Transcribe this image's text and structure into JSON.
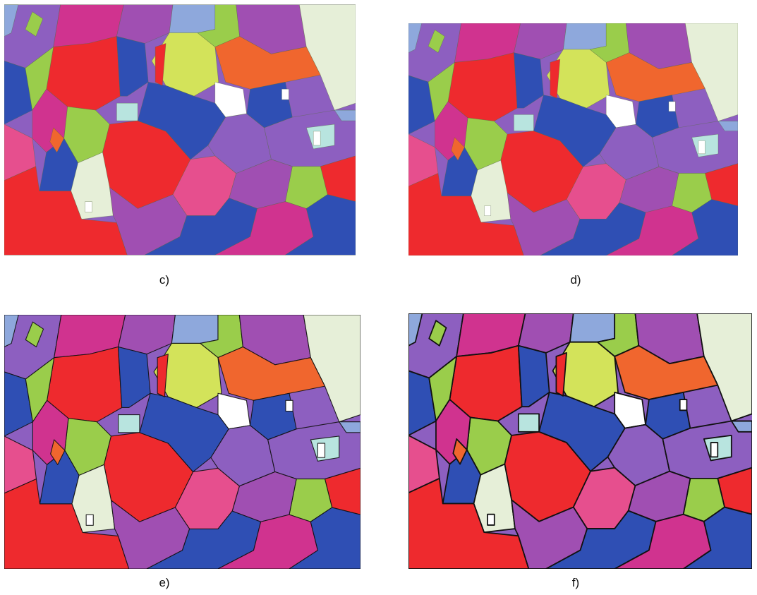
{
  "figure": {
    "panels": [
      {
        "id": "c",
        "caption": "c)"
      },
      {
        "id": "d",
        "caption": "d)"
      },
      {
        "id": "e",
        "caption": "e)"
      },
      {
        "id": "f",
        "caption": "f)"
      }
    ],
    "palette": {
      "red": "#ee2a2e",
      "blue": "#2f4fb4",
      "lime": "#9acd4b",
      "yellow_green": "#d3e35a",
      "pale": "#e6efd8",
      "magenta": "#d0338f",
      "violet": "#8d5fc0",
      "purple": "#a04fb2",
      "orange": "#f0662e",
      "light_blue": "#8ea8dc",
      "teal_light": "#b8e4df",
      "pink": "#e64f8e",
      "white": "#ffffff",
      "boundary": "#111111"
    }
  }
}
